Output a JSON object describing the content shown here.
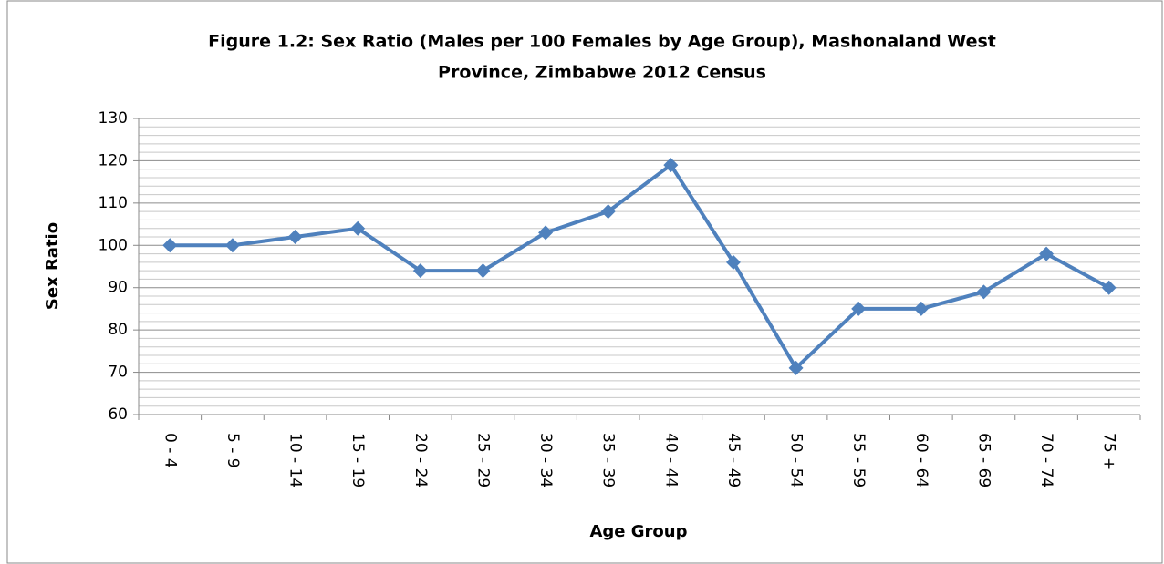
{
  "chart_data": {
    "type": "line",
    "title": [
      "Figure 1.2: Sex Ratio (Males per 100 Females by Age Group),  Mashonaland West",
      "Province, Zimbabwe 2012 Census"
    ],
    "xlabel": "Age Group",
    "ylabel": "Sex Ratio",
    "categories": [
      "0 - 4",
      "5 - 9",
      "10 - 14",
      "15 - 19",
      "20 - 24",
      "25 - 29",
      "30 - 34",
      "35 - 39",
      "40 - 44",
      "45 - 49",
      "50 - 54",
      "55 - 59",
      "60 - 64",
      "65 - 69",
      "70 - 74",
      "75 +"
    ],
    "series": [
      {
        "name": "Sex Ratio",
        "color": "#4f81bd",
        "values": [
          100,
          100,
          102,
          104,
          94,
          94,
          103,
          108,
          119,
          96,
          71,
          85,
          85,
          89,
          98,
          90
        ]
      }
    ],
    "ylim": [
      60,
      130
    ],
    "yticks": [
      60,
      70,
      80,
      90,
      100,
      110,
      120,
      130
    ],
    "minor_yticks": [
      62,
      64,
      66,
      68,
      72,
      74,
      76,
      78,
      82,
      84,
      86,
      88,
      92,
      94,
      96,
      98,
      102,
      104,
      106,
      108,
      112,
      114,
      116,
      118,
      122,
      124,
      126,
      128
    ],
    "grid": true
  }
}
